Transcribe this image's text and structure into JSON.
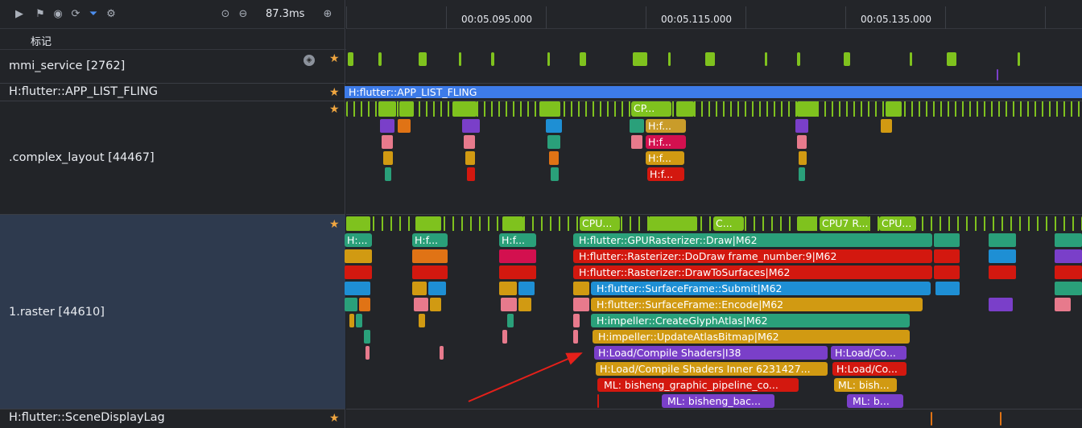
{
  "toolbar": {
    "icons": [
      "play-icon",
      "flag-icon",
      "globe-icon",
      "refresh-icon",
      "filter-icon",
      "settings-icon",
      "reset-zoom-icon",
      "zoom-out-icon",
      "zoom-in-icon"
    ],
    "zoom_level": "87.3ms"
  },
  "ruler": {
    "ticks": [
      "00:05.095.000",
      "00:05.115.000",
      "00:05.135.000"
    ]
  },
  "marker_row": {
    "label": "标记"
  },
  "rows": {
    "mmi_service": {
      "label": "mmi_service [2762]"
    },
    "app_list_fling": {
      "label": "H:flutter::APP_LIST_FLING",
      "bar_label": "H:flutter::APP_LIST_FLING"
    },
    "complex_layout": {
      "label": ".complex_layout [44467]",
      "cpu_label": "CP...",
      "slice1": "H:f...",
      "slice2": "H:f...",
      "slice3": "H:f...",
      "slice4": "H:f..."
    },
    "raster": {
      "label": "1.raster [44610]",
      "cpu1": "CPU...",
      "cpu2": "C...",
      "cpu3": "CPU7 R...",
      "cpu4": "CPU...",
      "l1": "H:flutter::GPURasterizer::Draw|M62",
      "l2": "H:flutter::Rasterizer::DoDraw frame_number:9|M62",
      "l3": "H:flutter::Rasterizer::DrawToSurfaces|M62",
      "l4": "H:flutter::SurfaceFrame::Submit|M62",
      "l5": "H:flutter::SurfaceFrame::Encode|M62",
      "l6": "H:impeller::CreateGlyphAtlas|M62",
      "l7": "H:impeller::UpdateAtlasBitmap|M62",
      "l8": "H:Load/Compile Shaders|I38",
      "l8b": "H:Load/Co...",
      "l9": "H:Load/Compile Shaders Inner 6231427...",
      "l9b": "H:Load/Co...",
      "l10": "ML: bisheng_graphic_pipeline_co...",
      "l10b": "ML: bish...",
      "l11": "ML: bisheng_bac...",
      "l11b": "ML: b...",
      "short": "H:...",
      "short2": "H:f...",
      "short3": "H:f..."
    },
    "scene_display_lag": {
      "label": "H:flutter::SceneDisplayLag"
    }
  },
  "colors": {
    "green": "#7fc21e",
    "teal": "#2aa07a",
    "red": "#d3180f",
    "blue": "#1e8fd4",
    "amber": "#d19a12",
    "pink": "#e77a8c",
    "purple": "#7a3fc9",
    "orange": "#e07315",
    "fling": "#3d7be8"
  }
}
